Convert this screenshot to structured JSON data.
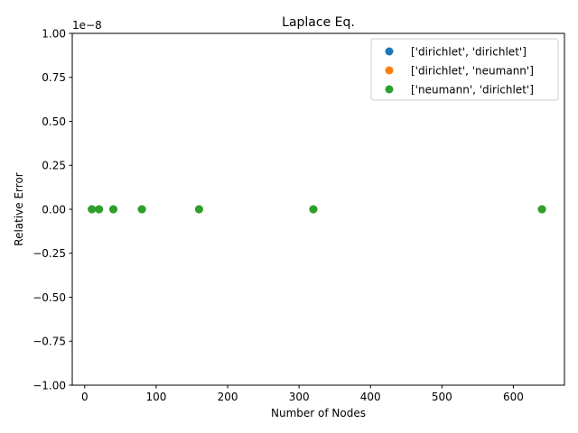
{
  "chart_data": {
    "type": "scatter",
    "title": "Laplace Eq.",
    "xlabel": "Number of Nodes",
    "ylabel": "Relative Error",
    "y_offset_label": "1e−8",
    "y_scale_factor": 1e-08,
    "xlim": [
      -17.5,
      671.5
    ],
    "ylim": [
      -1e-08,
      1e-08
    ],
    "xticks": [
      0,
      100,
      200,
      300,
      400,
      500,
      600
    ],
    "xtick_labels": [
      "0",
      "100",
      "200",
      "300",
      "400",
      "500",
      "600"
    ],
    "yticks": [
      -1e-08,
      -7.5e-09,
      -5e-09,
      -2.5e-09,
      0,
      2.5e-09,
      5e-09,
      7.5e-09,
      1e-08
    ],
    "ytick_labels": [
      "−1.00",
      "−0.75",
      "−0.50",
      "−0.25",
      "0.00",
      "0.25",
      "0.50",
      "0.75",
      "1.00"
    ],
    "grid": false,
    "legend_position": "top-right",
    "series": [
      {
        "name": "['dirichlet', 'dirichlet']",
        "color": "#1f77b4",
        "x": [
          10,
          20,
          40,
          80,
          160,
          320,
          640
        ],
        "y": [
          0,
          0,
          0,
          0,
          0,
          0,
          0
        ]
      },
      {
        "name": "['dirichlet', 'neumann']",
        "color": "#ff7f0e",
        "x": [
          10,
          20,
          40,
          80,
          160,
          320,
          640
        ],
        "y": [
          0,
          0,
          0,
          0,
          0,
          0,
          0
        ]
      },
      {
        "name": "['neumann', 'dirichlet']",
        "color": "#2ca02c",
        "x": [
          10,
          20,
          40,
          80,
          160,
          320,
          640
        ],
        "y": [
          0,
          0,
          0,
          0,
          0,
          0,
          0
        ]
      }
    ]
  }
}
